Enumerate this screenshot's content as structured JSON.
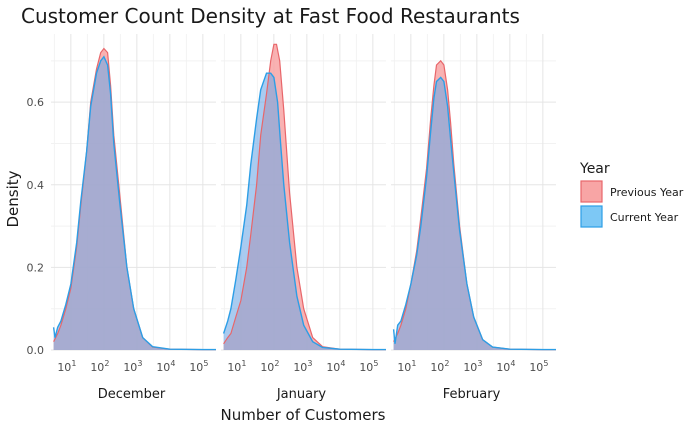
{
  "chart_data": {
    "type": "area",
    "title": "Customer Count Density at Fast Food Restaurants",
    "xlabel": "Number of Customers",
    "ylabel": "Density",
    "x_scale": "log10",
    "xlim": [
      2.5,
      250000
    ],
    "ylim": [
      0,
      0.765
    ],
    "y_ticks": [
      0.0,
      0.2,
      0.4,
      0.6
    ],
    "y_tick_labels": [
      "0.0",
      "0.2",
      "0.4",
      "0.6"
    ],
    "x_tick_exponents": [
      "1",
      "2",
      "3",
      "4",
      "5"
    ],
    "x_tick_base": "10",
    "grid": true,
    "legend": {
      "title": "Year",
      "position": "right",
      "entries": [
        "Previous Year",
        "Current Year"
      ]
    },
    "series_colors": {
      "Previous Year": {
        "line": "#e8666a",
        "fill": "#f8a5a5"
      },
      "Current Year": {
        "line": "#2c9ee6",
        "fill": "#7dc8f5"
      }
    },
    "overlap_fill": "#8aa6d6",
    "facets": [
      {
        "label": "December",
        "series": [
          {
            "name": "Previous Year",
            "points": [
              [
                3,
                0.02
              ],
              [
                4,
                0.04
              ],
              [
                5,
                0.06
              ],
              [
                7,
                0.1
              ],
              [
                10,
                0.15
              ],
              [
                15,
                0.25
              ],
              [
                20,
                0.35
              ],
              [
                30,
                0.48
              ],
              [
                40,
                0.6
              ],
              [
                60,
                0.68
              ],
              [
                80,
                0.72
              ],
              [
                100,
                0.73
              ],
              [
                130,
                0.72
              ],
              [
                160,
                0.64
              ],
              [
                200,
                0.52
              ],
              [
                300,
                0.38
              ],
              [
                500,
                0.2
              ],
              [
                800,
                0.1
              ],
              [
                1500,
                0.03
              ],
              [
                3000,
                0.007
              ],
              [
                10000,
                0.002
              ],
              [
                100000,
                0.001
              ],
              [
                250000,
                0.001
              ]
            ]
          },
          {
            "name": "Current Year",
            "points": [
              [
                3,
                0.055
              ],
              [
                3.3,
                0.03
              ],
              [
                4,
                0.055
              ],
              [
                5,
                0.07
              ],
              [
                7,
                0.11
              ],
              [
                10,
                0.16
              ],
              [
                15,
                0.26
              ],
              [
                20,
                0.36
              ],
              [
                30,
                0.48
              ],
              [
                40,
                0.59
              ],
              [
                60,
                0.67
              ],
              [
                80,
                0.7
              ],
              [
                100,
                0.71
              ],
              [
                130,
                0.69
              ],
              [
                160,
                0.62
              ],
              [
                200,
                0.5
              ],
              [
                300,
                0.36
              ],
              [
                500,
                0.2
              ],
              [
                800,
                0.1
              ],
              [
                1500,
                0.03
              ],
              [
                3000,
                0.008
              ],
              [
                10000,
                0.002
              ],
              [
                100000,
                0.001
              ],
              [
                250000,
                0.001
              ]
            ]
          }
        ]
      },
      {
        "label": "January",
        "series": [
          {
            "name": "Previous Year",
            "points": [
              [
                3,
                0.015
              ],
              [
                4,
                0.03
              ],
              [
                5,
                0.04
              ],
              [
                7,
                0.08
              ],
              [
                10,
                0.12
              ],
              [
                15,
                0.2
              ],
              [
                20,
                0.28
              ],
              [
                30,
                0.4
              ],
              [
                40,
                0.52
              ],
              [
                60,
                0.62
              ],
              [
                80,
                0.7
              ],
              [
                100,
                0.74
              ],
              [
                120,
                0.74
              ],
              [
                150,
                0.7
              ],
              [
                200,
                0.58
              ],
              [
                300,
                0.38
              ],
              [
                500,
                0.2
              ],
              [
                800,
                0.1
              ],
              [
                1500,
                0.03
              ],
              [
                3000,
                0.008
              ],
              [
                10000,
                0.002
              ],
              [
                100000,
                0.001
              ],
              [
                250000,
                0.001
              ]
            ]
          },
          {
            "name": "Current Year",
            "points": [
              [
                3,
                0.04
              ],
              [
                4,
                0.07
              ],
              [
                5,
                0.1
              ],
              [
                7,
                0.17
              ],
              [
                10,
                0.25
              ],
              [
                15,
                0.35
              ],
              [
                20,
                0.45
              ],
              [
                30,
                0.56
              ],
              [
                40,
                0.63
              ],
              [
                60,
                0.67
              ],
              [
                80,
                0.67
              ],
              [
                100,
                0.66
              ],
              [
                130,
                0.6
              ],
              [
                160,
                0.5
              ],
              [
                200,
                0.4
              ],
              [
                300,
                0.26
              ],
              [
                500,
                0.13
              ],
              [
                800,
                0.06
              ],
              [
                1500,
                0.02
              ],
              [
                3000,
                0.006
              ],
              [
                10000,
                0.002
              ],
              [
                100000,
                0.001
              ],
              [
                250000,
                0.001
              ]
            ]
          }
        ]
      },
      {
        "label": "February",
        "series": [
          {
            "name": "Previous Year",
            "points": [
              [
                3,
                0.02
              ],
              [
                4,
                0.04
              ],
              [
                5,
                0.06
              ],
              [
                7,
                0.1
              ],
              [
                10,
                0.16
              ],
              [
                15,
                0.24
              ],
              [
                20,
                0.32
              ],
              [
                30,
                0.44
              ],
              [
                40,
                0.56
              ],
              [
                50,
                0.64
              ],
              [
                60,
                0.69
              ],
              [
                80,
                0.7
              ],
              [
                100,
                0.69
              ],
              [
                130,
                0.63
              ],
              [
                160,
                0.55
              ],
              [
                200,
                0.45
              ],
              [
                300,
                0.3
              ],
              [
                500,
                0.16
              ],
              [
                800,
                0.08
              ],
              [
                1500,
                0.025
              ],
              [
                3000,
                0.007
              ],
              [
                10000,
                0.002
              ],
              [
                100000,
                0.001
              ],
              [
                250000,
                0.001
              ]
            ]
          },
          {
            "name": "Current Year",
            "points": [
              [
                3,
                0.05
              ],
              [
                3.3,
                0.015
              ],
              [
                4,
                0.06
              ],
              [
                5,
                0.07
              ],
              [
                7,
                0.11
              ],
              [
                10,
                0.16
              ],
              [
                15,
                0.23
              ],
              [
                20,
                0.3
              ],
              [
                30,
                0.42
              ],
              [
                40,
                0.53
              ],
              [
                50,
                0.61
              ],
              [
                60,
                0.65
              ],
              [
                80,
                0.66
              ],
              [
                100,
                0.65
              ],
              [
                130,
                0.59
              ],
              [
                160,
                0.51
              ],
              [
                200,
                0.43
              ],
              [
                300,
                0.29
              ],
              [
                500,
                0.16
              ],
              [
                800,
                0.08
              ],
              [
                1500,
                0.025
              ],
              [
                3000,
                0.007
              ],
              [
                10000,
                0.002
              ],
              [
                100000,
                0.001
              ],
              [
                250000,
                0.001
              ]
            ]
          }
        ]
      }
    ]
  }
}
